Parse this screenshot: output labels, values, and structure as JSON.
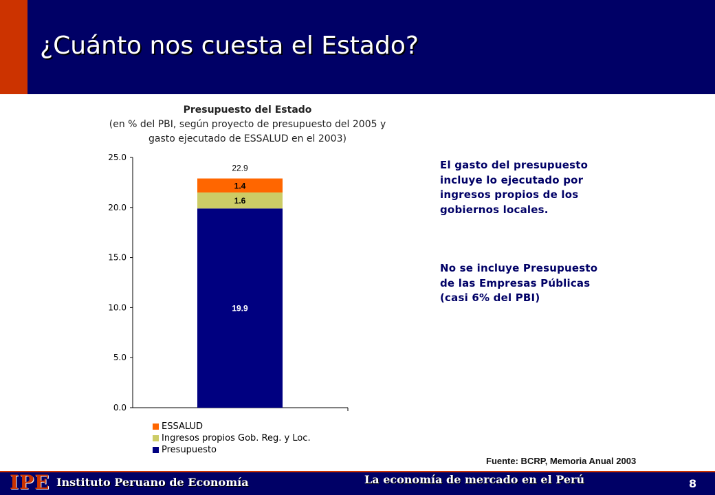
{
  "header": {
    "title": "¿Cuánto nos cuesta el Estado?"
  },
  "colors": {
    "navy": "#000066",
    "red": "#cc3300",
    "essalud": "#ff6600",
    "ingresos": "#cccc66",
    "presupuesto": "#000080"
  },
  "chart_data": {
    "type": "bar",
    "stacked": true,
    "title": "Presupuesto del Estado",
    "subtitle_line1": "(en % del PBI, según proyecto de presupuesto del 2005 y",
    "subtitle_line2": "gasto ejecutado de ESSALUD en el 2003)",
    "categories": [
      ""
    ],
    "ylim": [
      0,
      25
    ],
    "yticks": [
      0,
      5,
      10,
      15,
      20,
      25
    ],
    "ytick_labels": [
      "0.0",
      "5.0",
      "10.0",
      "15.0",
      "20.0",
      "25.0"
    ],
    "grid": false,
    "legend_position": "bottom-left",
    "series": [
      {
        "name": "Presupuesto",
        "values": [
          19.9
        ],
        "label": "19.9",
        "color": "#000080",
        "label_color": "#ffffff"
      },
      {
        "name": "Ingresos propios Gob. Reg. y Loc.",
        "values": [
          1.6
        ],
        "label": "1.6",
        "color": "#cccc66",
        "label_color": "#000000"
      },
      {
        "name": "ESSALUD",
        "values": [
          1.4
        ],
        "label": "1.4",
        "color": "#ff6600",
        "label_color": "#000000"
      }
    ],
    "total_label": "22.9"
  },
  "legend": [
    {
      "label": "ESSALUD",
      "color": "#ff6600"
    },
    {
      "label": "Ingresos propios Gob. Reg. y Loc.",
      "color": "#cccc66"
    },
    {
      "label": "Presupuesto",
      "color": "#000080"
    }
  ],
  "notes": {
    "note1": "El gasto del presupuesto incluye lo ejecutado por ingresos propios de los gobiernos locales.",
    "note2": "No se incluye Presupuesto de las Empresas Públicas (casi 6% del PBI)"
  },
  "source": "Fuente: BCRP, Memoria Anual 2003",
  "footer": {
    "logo": "IPE",
    "institute": "Instituto Peruano de Economía",
    "tagline": "La economía de mercado en el Perú",
    "page": "8"
  }
}
